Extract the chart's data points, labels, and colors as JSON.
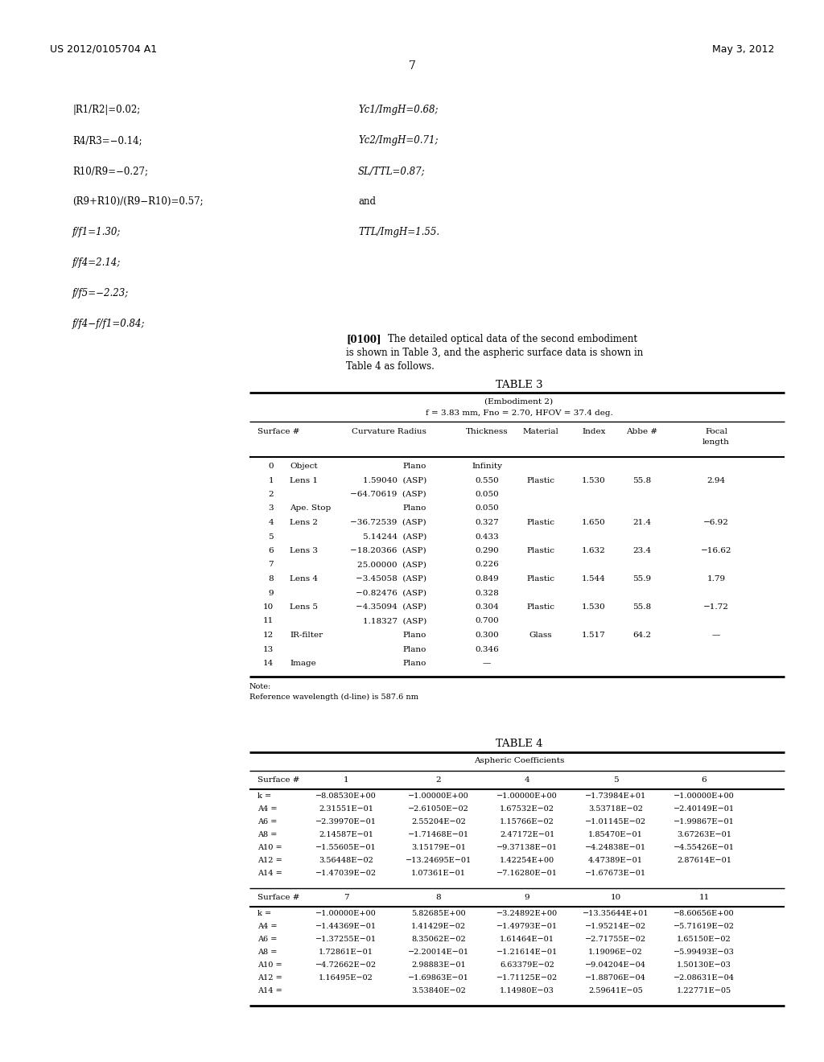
{
  "header_left": "US 2012/0105704 A1",
  "header_right": "May 3, 2012",
  "page_number": "7",
  "left_col_items": [
    "|R1/R2|=0.02;",
    "R4/R3=−0.14;",
    "R10/R9=−0.27;",
    "(R9+R10)/(R9−R10)=0.57;",
    "f/f1=1.30;",
    "f/f4=2.14;",
    "f/f5=−2.23;",
    "f/f4−f/f1=0.84;"
  ],
  "left_italic": [
    false,
    false,
    false,
    false,
    true,
    true,
    true,
    true
  ],
  "right_col_items": [
    "Yc1/ImgH=0.68;",
    "Yc2/ImgH=0.71;",
    "SL/TTL=0.87;",
    "and",
    "TTL/ImgH=1.55."
  ],
  "right_italic": [
    true,
    true,
    true,
    false,
    true
  ],
  "table3_title": "TABLE 3",
  "table3_subtitle1": "(Embodiment 2)",
  "table3_subtitle2": "f = 3.83 mm, Fno = 2.70, HFOV = 37.4 deg.",
  "table3_rows": [
    [
      "0",
      "Object",
      "Plano",
      "Infinity",
      "",
      "",
      "",
      ""
    ],
    [
      "1",
      "Lens 1",
      "1.59040  (ASP)",
      "0.550",
      "Plastic",
      "1.530",
      "55.8",
      "2.94"
    ],
    [
      "2",
      "",
      "−64.70619  (ASP)",
      "0.050",
      "",
      "",
      "",
      ""
    ],
    [
      "3",
      "Ape. Stop",
      "Plano",
      "0.050",
      "",
      "",
      "",
      ""
    ],
    [
      "4",
      "Lens 2",
      "−36.72539  (ASP)",
      "0.327",
      "Plastic",
      "1.650",
      "21.4",
      "−6.92"
    ],
    [
      "5",
      "",
      "5.14244  (ASP)",
      "0.433",
      "",
      "",
      "",
      ""
    ],
    [
      "6",
      "Lens 3",
      "−18.20366  (ASP)",
      "0.290",
      "Plastic",
      "1.632",
      "23.4",
      "−16.62"
    ],
    [
      "7",
      "",
      "25.00000  (ASP)",
      "0.226",
      "",
      "",
      "",
      ""
    ],
    [
      "8",
      "Lens 4",
      "−3.45058  (ASP)",
      "0.849",
      "Plastic",
      "1.544",
      "55.9",
      "1.79"
    ],
    [
      "9",
      "",
      "−0.82476  (ASP)",
      "0.328",
      "",
      "",
      "",
      ""
    ],
    [
      "10",
      "Lens 5",
      "−4.35094  (ASP)",
      "0.304",
      "Plastic",
      "1.530",
      "55.8",
      "−1.72"
    ],
    [
      "11",
      "",
      "1.18327  (ASP)",
      "0.700",
      "",
      "",
      "",
      ""
    ],
    [
      "12",
      "IR-filter",
      "Plano",
      "0.300",
      "Glass",
      "1.517",
      "64.2",
      "—"
    ],
    [
      "13",
      "",
      "Plano",
      "0.346",
      "",
      "",
      "",
      ""
    ],
    [
      "14",
      "Image",
      "Plano",
      "—",
      "",
      "",
      "",
      ""
    ]
  ],
  "table4_title": "TABLE 4",
  "table4_subtitle": "Aspheric Coefficients",
  "table4_col_headers_top": [
    "Surface #",
    "1",
    "2",
    "4",
    "5",
    "6"
  ],
  "table4_rows_top": [
    [
      "k =",
      "−8.08530E+00",
      "−1.00000E+00",
      "−1.00000E+00",
      "−1.73984E+01",
      "−1.00000E+00"
    ],
    [
      "A4 =",
      "2.31551E−01",
      "−2.61050E−02",
      "1.67532E−02",
      "3.53718E−02",
      "−2.40149E−01"
    ],
    [
      "A6 =",
      "−2.39970E−01",
      "2.55204E−02",
      "1.15766E−02",
      "−1.01145E−02",
      "−1.99867E−01"
    ],
    [
      "A8 =",
      "2.14587E−01",
      "−1.71468E−01",
      "2.47172E−01",
      "1.85470E−01",
      "3.67263E−01"
    ],
    [
      "A10 =",
      "−1.55605E−01",
      "3.15179E−01",
      "−9.37138E−01",
      "−4.24838E−01",
      "−4.55426E−01"
    ],
    [
      "A12 =",
      "3.56448E−02",
      "−13.24695E−01",
      "1.42254E+00",
      "4.47389E−01",
      "2.87614E−01"
    ],
    [
      "A14 =",
      "−1.47039E−02",
      "1.07361E−01",
      "−7.16280E−01",
      "−1.67673E−01",
      ""
    ]
  ],
  "table4_col_headers_bot": [
    "Surface #",
    "7",
    "8",
    "9",
    "10",
    "11"
  ],
  "table4_rows_bot": [
    [
      "k =",
      "−1.00000E+00",
      "5.82685E+00",
      "−3.24892E+00",
      "−13.35644E+01",
      "−8.60656E+00"
    ],
    [
      "A4 =",
      "−1.44369E−01",
      "1.41429E−02",
      "−1.49793E−01",
      "−1.95214E−02",
      "−5.71619E−02"
    ],
    [
      "A6 =",
      "−1.37255E−01",
      "8.35062E−02",
      "1.61464E−01",
      "−2.71755E−02",
      "1.65150E−02"
    ],
    [
      "A8 =",
      "1.72861E−01",
      "−2.20014E−01",
      "−1.21614E−01",
      "1.19096E−02",
      "−5.99493E−03"
    ],
    [
      "A10 =",
      "−4.72662E−02",
      "2.98883E−01",
      "6.63379E−02",
      "−9.04204E−04",
      "1.50130E−03"
    ],
    [
      "A12 =",
      "1.16495E−02",
      "−1.69863E−01",
      "−1.71125E−02",
      "−1.88706E−04",
      "−2.08631E−04"
    ],
    [
      "A14 =",
      "",
      "3.53840E−02",
      "1.14980E−03",
      "2.59641E−05",
      "1.22771E−05"
    ]
  ]
}
